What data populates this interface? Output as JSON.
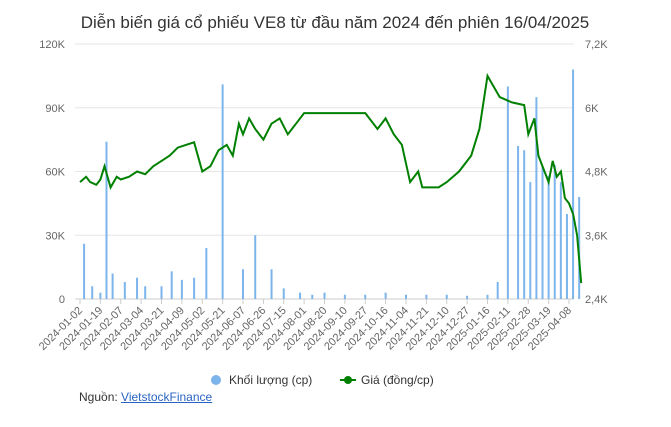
{
  "chart_data": {
    "type": "bar+line",
    "title": "Diễn biến giá cổ phiếu VE8 từ đầu năm 2024 đến phiên 16/04/2025",
    "y_left": {
      "ticks": [
        "0",
        "30K",
        "60K",
        "90K",
        "120K"
      ],
      "values": [
        0,
        30000,
        60000,
        90000,
        120000
      ],
      "ylim": [
        0,
        120000
      ]
    },
    "y_right": {
      "ticks": [
        "2,4K",
        "3,6K",
        "4,8K",
        "6K",
        "7,2K"
      ],
      "values": [
        2400,
        3600,
        4800,
        6000,
        7200
      ],
      "ylim": [
        2400,
        7200
      ]
    },
    "x_ticks": [
      "2024-01-02",
      "2024-01-19",
      "2024-02-07",
      "2024-03-04",
      "2024-03-21",
      "2024-04-09",
      "2024-05-02",
      "2024-05-21",
      "2024-06-07",
      "2024-06-26",
      "2024-07-15",
      "2024-08-01",
      "2024-08-20",
      "2024-09-10",
      "2024-09-27",
      "2024-10-16",
      "2024-11-04",
      "2024-11-21",
      "2024-12-10",
      "2024-12-27",
      "2025-01-16",
      "2025-02-11",
      "2025-02-28",
      "2025-03-19",
      "2025-04-08"
    ],
    "series": [
      {
        "name": "Khối lượng (cp)",
        "type": "bar",
        "axis": "left",
        "color": "#7cb5ec",
        "x": [
          0.2,
          0.6,
          1.0,
          1.3,
          1.6,
          2.2,
          2.8,
          3.2,
          4.0,
          4.5,
          5.0,
          5.6,
          6.2,
          7.0,
          8.0,
          8.6,
          9.4,
          10.0,
          10.8,
          11.4,
          12.0,
          13.0,
          14.0,
          15.0,
          16.0,
          17.0,
          18.0,
          19.0,
          20.0,
          20.5,
          21.0,
          21.5,
          21.8,
          22.1,
          22.4,
          22.7,
          23.0,
          23.3,
          23.6,
          23.9,
          24.2,
          24.5
        ],
        "values": [
          26000,
          6000,
          3000,
          74000,
          12000,
          8000,
          10000,
          6000,
          6000,
          13000,
          9000,
          10000,
          24000,
          101000,
          14000,
          30000,
          14000,
          5000,
          3000,
          2000,
          3000,
          2000,
          2000,
          3000,
          2000,
          2000,
          2000,
          1500,
          2000,
          8000,
          100000,
          72000,
          70000,
          55000,
          95000,
          62000,
          58000,
          63000,
          55000,
          40000,
          108000,
          48000
        ]
      },
      {
        "name": "Giá (đồng/cp)",
        "type": "line",
        "axis": "right",
        "color": "#008000",
        "x": [
          0,
          0.3,
          0.5,
          0.8,
          1.0,
          1.2,
          1.5,
          1.8,
          2.0,
          2.4,
          2.8,
          3.2,
          3.6,
          4.0,
          4.4,
          4.8,
          5.2,
          5.6,
          6.0,
          6.4,
          6.8,
          7.2,
          7.5,
          7.8,
          8.0,
          8.3,
          8.6,
          9.0,
          9.4,
          9.8,
          10.2,
          10.6,
          11.0,
          11.6,
          12.2,
          12.8,
          13.4,
          14.0,
          14.6,
          15.0,
          15.4,
          15.8,
          16.2,
          16.6,
          16.8,
          17.2,
          17.6,
          18.0,
          18.6,
          19.2,
          19.6,
          20.0,
          20.6,
          21.2,
          21.8,
          22.0,
          22.3,
          22.5,
          22.8,
          23.0,
          23.2,
          23.4,
          23.6,
          23.8,
          24.0,
          24.2,
          24.4,
          24.6
        ],
        "values": [
          4600,
          4700,
          4600,
          4550,
          4650,
          4900,
          4500,
          4700,
          4650,
          4700,
          4800,
          4750,
          4900,
          5000,
          5100,
          5250,
          5300,
          5350,
          4800,
          4900,
          5200,
          5300,
          5100,
          5700,
          5500,
          5800,
          5600,
          5400,
          5700,
          5800,
          5500,
          5700,
          5900,
          5900,
          5900,
          5900,
          5900,
          5900,
          5600,
          5800,
          5500,
          5300,
          4600,
          4800,
          4500,
          4500,
          4500,
          4600,
          4800,
          5100,
          5600,
          6600,
          6200,
          6100,
          6050,
          5500,
          5800,
          5100,
          4800,
          4600,
          5000,
          4700,
          4800,
          4300,
          4200,
          4000,
          3600,
          2700
        ]
      }
    ],
    "legend_position": "bottom-center",
    "grid": "horizontal"
  },
  "footer": {
    "source_label": "Nguồn: ",
    "source_link": "VietstockFinance"
  }
}
